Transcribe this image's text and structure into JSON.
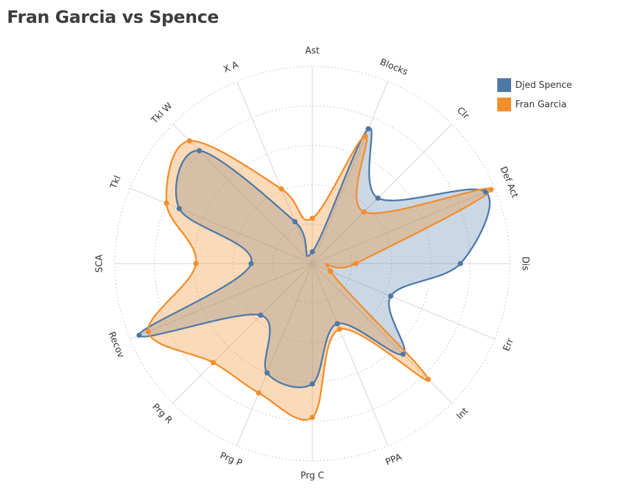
{
  "title": "Fran Garcia vs Spence",
  "chart_data": {
    "type": "radar",
    "categories": [
      "Ast",
      "Blocks",
      "Clr",
      "Def Act",
      "Dis",
      "Err",
      "Int",
      "PPA",
      "Prg C",
      "Prg P",
      "Prg R",
      "Recov",
      "SCA",
      "Tkl",
      "Tkl W",
      "X A"
    ],
    "rmax": 100,
    "rings": 5,
    "series": [
      {
        "name": "Djed Spence",
        "color": "#4e79a7",
        "fill": "rgba(78,121,167,0.30)",
        "values": [
          6,
          74,
          47,
          95,
          75,
          43,
          65,
          33,
          61,
          60,
          37,
          95,
          31,
          73,
          81,
          23
        ]
      },
      {
        "name": "Fran Garcia",
        "color": "#f28e2b",
        "fill": "rgba(242,142,43,0.33)",
        "values": [
          23,
          70,
          37,
          98,
          22,
          10,
          83,
          36,
          78,
          71,
          71,
          90,
          59,
          80,
          88,
          41
        ]
      }
    ]
  }
}
